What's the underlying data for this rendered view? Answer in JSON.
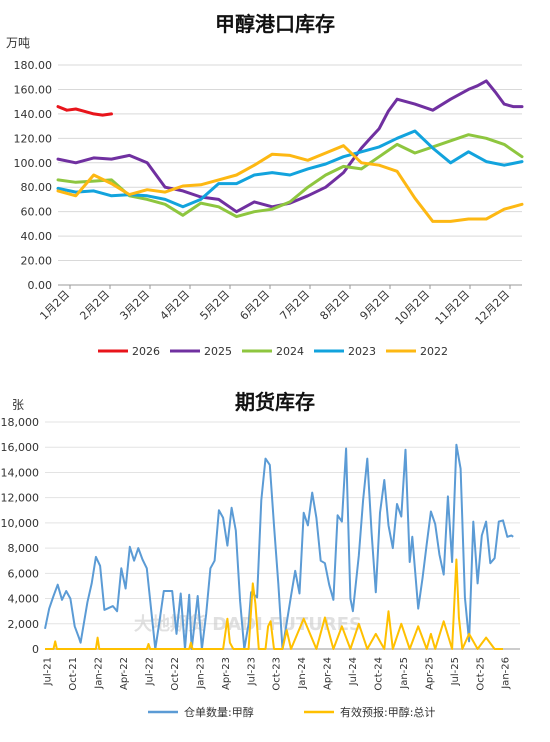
{
  "chart_data": [
    {
      "type": "line",
      "title": "甲醇港口库存",
      "ylabel": "万吨",
      "ylim": [
        0,
        180
      ],
      "yticks": [
        "0.00",
        "20.00",
        "40.00",
        "60.00",
        "80.00",
        "100.00",
        "120.00",
        "140.00",
        "160.00",
        "180.00"
      ],
      "xticks": [
        "1月2日",
        "2月2日",
        "3月2日",
        "4月2日",
        "5月2日",
        "6月2日",
        "7月2日",
        "8月2日",
        "9月2日",
        "10月2日",
        "11月2日",
        "12月2日"
      ],
      "xrange_weeks": [
        0,
        52
      ],
      "grid": "horizontal",
      "legend_position": "bottom",
      "series": [
        {
          "name": "2026",
          "color": "#e8141b",
          "x": [
            0,
            1,
            2,
            3,
            4,
            5,
            6
          ],
          "values": [
            146,
            143,
            144,
            142,
            140,
            139,
            140
          ]
        },
        {
          "name": "2025",
          "color": "#7030a0",
          "x": [
            0,
            2,
            4,
            6,
            8,
            10,
            12,
            14,
            16,
            18,
            20,
            22,
            24,
            26,
            28,
            30,
            32,
            34,
            35,
            36,
            37,
            38,
            40,
            42,
            44,
            46,
            47,
            48,
            49,
            50,
            51,
            52
          ],
          "values": [
            103,
            100,
            104,
            103,
            106,
            100,
            80,
            77,
            72,
            70,
            60,
            68,
            64,
            67,
            73,
            80,
            92,
            112,
            120,
            128,
            142,
            152,
            148,
            143,
            152,
            160,
            163,
            167,
            158,
            148,
            146,
            146
          ]
        },
        {
          "name": "2024",
          "color": "#8ec63f",
          "x": [
            0,
            2,
            4,
            6,
            8,
            10,
            12,
            14,
            16,
            18,
            20,
            22,
            24,
            26,
            28,
            30,
            32,
            34,
            36,
            38,
            40,
            42,
            44,
            46,
            48,
            50,
            52
          ],
          "values": [
            86,
            84,
            85,
            86,
            73,
            70,
            66,
            57,
            67,
            64,
            56,
            60,
            62,
            68,
            80,
            90,
            97,
            95,
            105,
            115,
            108,
            113,
            118,
            123,
            120,
            115,
            105
          ]
        },
        {
          "name": "2023",
          "color": "#12a3dd",
          "x": [
            0,
            2,
            4,
            6,
            8,
            10,
            12,
            14,
            16,
            18,
            20,
            22,
            24,
            26,
            28,
            30,
            32,
            34,
            36,
            38,
            40,
            42,
            44,
            46,
            48,
            50,
            52
          ],
          "values": [
            79,
            76,
            77,
            73,
            74,
            73,
            70,
            64,
            70,
            83,
            83,
            90,
            92,
            90,
            95,
            99,
            105,
            109,
            113,
            120,
            126,
            112,
            100,
            109,
            101,
            98,
            101
          ]
        },
        {
          "name": "2022",
          "color": "#fdb813",
          "x": [
            0,
            2,
            4,
            6,
            8,
            10,
            12,
            14,
            16,
            18,
            20,
            22,
            24,
            26,
            28,
            30,
            32,
            34,
            36,
            38,
            40,
            42,
            44,
            46,
            48,
            50,
            52
          ],
          "values": [
            77,
            73,
            90,
            83,
            74,
            78,
            76,
            81,
            82,
            86,
            90,
            98,
            107,
            106,
            102,
            108,
            114,
            100,
            98,
            93,
            71,
            52,
            52,
            54,
            54,
            62,
            66
          ]
        }
      ]
    },
    {
      "type": "line",
      "title": "期货库存",
      "ylabel": "张",
      "ylim": [
        0,
        18000
      ],
      "yticks": [
        "0",
        "2,000",
        "4,000",
        "6,000",
        "8,000",
        "10,000",
        "12,000",
        "14,000",
        "16,000",
        "18,000"
      ],
      "xticks": [
        "Jul-21",
        "Oct-21",
        "Jan-22",
        "Apr-22",
        "Jul-22",
        "Oct-22",
        "Jan-23",
        "Apr-23",
        "Jul-23",
        "Oct-23",
        "Jan-24",
        "Apr-24",
        "Jul-24",
        "Oct-24",
        "Jan-25",
        "Apr-25",
        "Jul-25",
        "Oct-25",
        "Jan-26"
      ],
      "grid": "horizontal",
      "legend_position": "bottom",
      "watermark": "大地期货 DADI FUTURES",
      "series": [
        {
          "name": "仓单数量:甲醇",
          "color": "#5b9bd5",
          "month": [
            0,
            0.5,
            1,
            1.5,
            2,
            2.5,
            3,
            3.5,
            4,
            4.2,
            5,
            5.5,
            6,
            6.5,
            7,
            8,
            8.5,
            9,
            9.5,
            10,
            10.5,
            11,
            11.5,
            12,
            13,
            13.5,
            14,
            15,
            15.5,
            16,
            16.5,
            17,
            17.3,
            18,
            18.5,
            19,
            19.5,
            20,
            20.5,
            21,
            21.5,
            22,
            22.5,
            23,
            23.5,
            24,
            24.3,
            25,
            25.5,
            26,
            26.5,
            27,
            27.5,
            28,
            29,
            29.5,
            30,
            30.5,
            31,
            31.5,
            32,
            32.5,
            33,
            33.5,
            34,
            34.5,
            35,
            35.5,
            36,
            36.3,
            37,
            37.5,
            38,
            38.5,
            39,
            39.5,
            40,
            40.5,
            41,
            41.5,
            42,
            42.5,
            43,
            43.3,
            44,
            44.5,
            45,
            45.5,
            46,
            46.5,
            47,
            47.5,
            48,
            48.5,
            49,
            49.5,
            50,
            50.5,
            51,
            51.5,
            52,
            52.5,
            53,
            53.5,
            54,
            54.5,
            55,
            55.2
          ],
          "values": [
            1600,
            3200,
            4200,
            5100,
            3900,
            4600,
            4000,
            1800,
            900,
            500,
            3700,
            5200,
            7300,
            6600,
            3100,
            3400,
            3000,
            6400,
            4800,
            8100,
            7000,
            8000,
            7100,
            6400,
            0,
            2200,
            4600,
            4600,
            1200,
            4400,
            0,
            4300,
            0,
            4200,
            0,
            2800,
            6400,
            7000,
            11000,
            10400,
            8200,
            11200,
            9400,
            3800,
            0,
            2000,
            4500,
            4100,
            11800,
            15100,
            14600,
            9800,
            5200,
            0,
            4200,
            6200,
            4400,
            10800,
            9800,
            12400,
            10400,
            7000,
            6800,
            5100,
            3900,
            10600,
            10100,
            15900,
            4000,
            3000,
            7400,
            11800,
            15100,
            9200,
            4500,
            10800,
            13400,
            9800,
            8000,
            11500,
            10500,
            15800,
            6900,
            8900,
            3200,
            5600,
            8300,
            10900,
            9900,
            7500,
            5900,
            12100,
            6900,
            16200,
            14300,
            4100,
            600,
            10100,
            5200,
            9000,
            10100,
            6800,
            7200,
            10100,
            10200,
            8900,
            9000,
            8900
          ]
        },
        {
          "name": "有效预报:甲醇:总计",
          "color": "#ffc000",
          "month": [
            0,
            1,
            1.2,
            1.4,
            5,
            6,
            6.2,
            6.4,
            11,
            12,
            12.2,
            12.4,
            16,
            17,
            17.2,
            17.4,
            21,
            21.5,
            21.8,
            22.2,
            24,
            24.5,
            24.8,
            25.2,
            26,
            26.3,
            26.6,
            27,
            28,
            28.5,
            29,
            30.5,
            32,
            33,
            34,
            35,
            36,
            37,
            38,
            39,
            40,
            40.5,
            41,
            42,
            43,
            44,
            45,
            45.5,
            46,
            47,
            48,
            48.5,
            48.8,
            49.2,
            50,
            51,
            52,
            53,
            54
          ],
          "values": [
            0,
            0,
            600,
            0,
            0,
            0,
            900,
            0,
            0,
            0,
            400,
            0,
            0,
            0,
            500,
            0,
            0,
            2400,
            500,
            0,
            0,
            5200,
            3600,
            0,
            0,
            1800,
            2200,
            0,
            0,
            1500,
            0,
            2400,
            0,
            2500,
            0,
            1800,
            0,
            2000,
            0,
            1200,
            0,
            3000,
            0,
            2000,
            0,
            1800,
            0,
            1200,
            0,
            2200,
            0,
            7100,
            2500,
            0,
            1200,
            0,
            900,
            0,
            0
          ]
        }
      ]
    }
  ]
}
